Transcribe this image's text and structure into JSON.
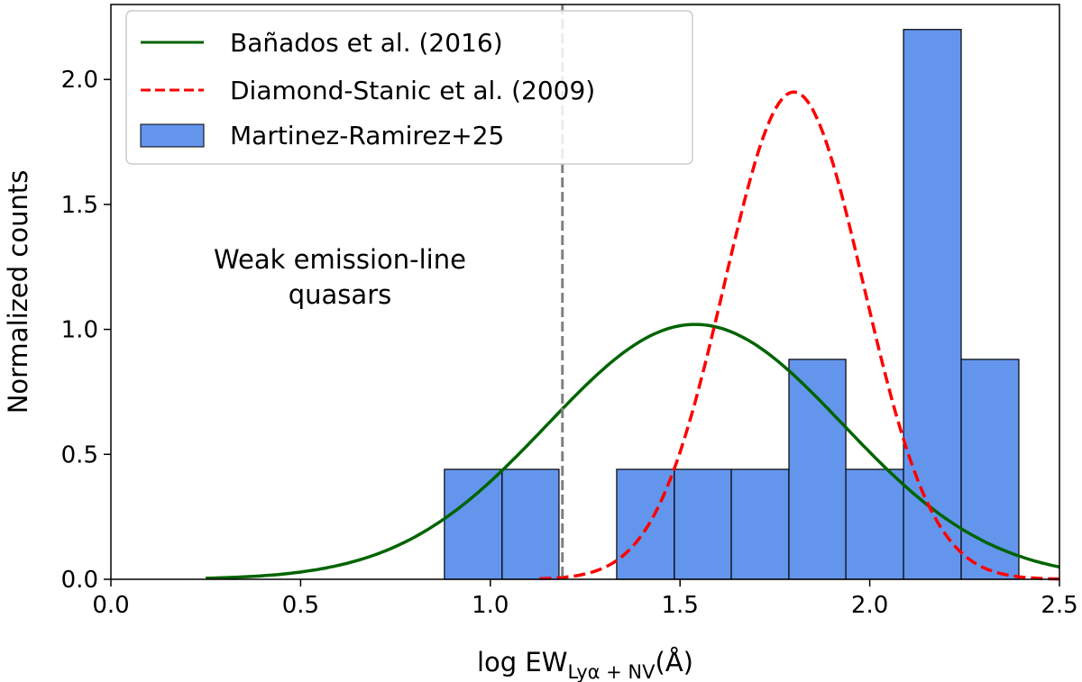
{
  "chart_data": {
    "type": "bar",
    "xlabel": "log EW",
    "xlabel_subscript": "Lyα + NV",
    "xlabel_unit": "(Å)",
    "ylabel": "Normalized counts",
    "xlim": [
      0.0,
      2.5
    ],
    "ylim": [
      0.0,
      2.3
    ],
    "grid": false,
    "legend_position": "top-left",
    "x_ticks": [
      "0.0",
      "0.5",
      "1.0",
      "1.5",
      "2.0",
      "2.5"
    ],
    "y_ticks": [
      "0.0",
      "0.5",
      "1.0",
      "1.5",
      "2.0"
    ],
    "histogram": {
      "name": "Martinez-Ramirez+25",
      "color": "#6495ED",
      "bin_edges": [
        0.879,
        1.031,
        1.181,
        1.333,
        1.485,
        1.635,
        1.787,
        1.937,
        2.089,
        2.241,
        2.393
      ],
      "values": [
        0.44,
        0.44,
        0.0,
        0.44,
        0.44,
        0.44,
        0.88,
        0.44,
        2.2,
        0.88
      ]
    },
    "curves": [
      {
        "name": "Bañados et al. (2016)",
        "color": "#006400",
        "style": "solid",
        "mean": 1.54,
        "sigma": 0.39,
        "amplitude": 1.02,
        "x_range": [
          0.25,
          2.5
        ]
      },
      {
        "name": "Diamond-Stanic et al. (2009)",
        "color": "#FF0000",
        "style": "dashed",
        "mean": 1.8,
        "sigma": 0.183,
        "amplitude": 1.95,
        "x_range": [
          1.13,
          2.5
        ]
      }
    ],
    "vline": {
      "x": 1.19,
      "color": "#808080",
      "style": "dashed"
    },
    "annotation": [
      "Weak emission-line",
      "quasars"
    ]
  }
}
